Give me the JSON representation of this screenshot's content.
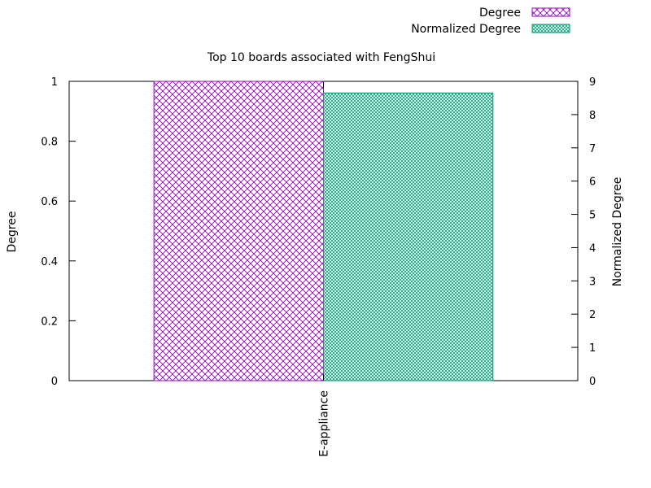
{
  "chart_data": {
    "type": "bar",
    "title": "Top 10 boards associated with FengShui",
    "categories": [
      "E-appliance"
    ],
    "series": [
      {
        "name": "Degree",
        "axis": "left",
        "values": [
          1
        ],
        "color": "#9400d3",
        "pattern": "crosshatch"
      },
      {
        "name": "Normalized Degree",
        "axis": "right",
        "values": [
          8.65
        ],
        "color": "#009e73",
        "pattern": "fine-crosshatch"
      }
    ],
    "ylabel": "Degree",
    "y2label": "Normalized Degree",
    "ylim": [
      0,
      1
    ],
    "y2lim": [
      0,
      9
    ],
    "yticks": [
      "0",
      "0.2",
      "0.4",
      "0.6",
      "0.8",
      "1"
    ],
    "y2ticks": [
      "0",
      "1",
      "2",
      "3",
      "4",
      "5",
      "6",
      "7",
      "8",
      "9"
    ],
    "grid": false,
    "legend": "top-right"
  }
}
